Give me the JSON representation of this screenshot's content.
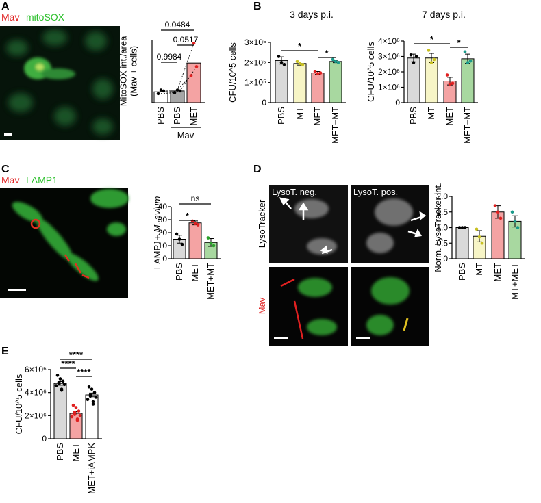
{
  "figure": {
    "panels": [
      "A",
      "B",
      "C",
      "D",
      "E"
    ],
    "image_labels": {
      "a_mav": "Mav",
      "a_mitosox": "mitoSOX",
      "c_mav": "Mav",
      "c_lamp1": "LAMP1",
      "d_neg": "LysoT. neg.",
      "d_pos": "LysoT. pos.",
      "d_lyso": "LysoTracker",
      "d_mav": "Mav"
    }
  },
  "chart_data": [
    {
      "type": "bar",
      "ylabel": [
        "MitoSOX int./area",
        "(Mav + cells)"
      ],
      "categories": [
        "PBS",
        "PBS",
        "MET"
      ],
      "values": [
        1.2,
        1.3,
        4.4
      ],
      "colors": [
        "#ffffff",
        "#a6a6a6",
        "#f4a3a3"
      ],
      "point_colors": [
        "#000000",
        "#000000",
        "#e02020"
      ],
      "points": [
        [
          1.0,
          1.4,
          1.3
        ],
        [
          1.1,
          1.4,
          1.3
        ],
        [
          3.0,
          6.6,
          4.0
        ]
      ],
      "paired": true,
      "ylim": [
        0,
        7
      ],
      "group": {
        "label": "Mav",
        "between": [
          1,
          2
        ]
      },
      "comparisons": [
        {
          "label": "0.9984",
          "between": [
            0,
            1
          ]
        },
        {
          "label": "0.0517",
          "between": [
            1,
            2
          ]
        },
        {
          "label": "0.0484",
          "between": [
            0,
            2
          ]
        }
      ]
    },
    {
      "type": "bar",
      "title": "3 days p.i.",
      "ylabel": [
        "CFU/10^5 cells"
      ],
      "categories": [
        "PBS",
        "MT",
        "MET",
        "MET+MT"
      ],
      "values": [
        210000,
        195000,
        148000,
        205000
      ],
      "errors": [
        18000,
        8000,
        7000,
        6000
      ],
      "colors": [
        "#d9d9d9",
        "#f7f5c6",
        "#f4a3a3",
        "#a8d8a0"
      ],
      "point_colors": [
        "#000000",
        "#c8c020",
        "#e02020",
        "#1a9a8a"
      ],
      "points": [
        [
          230000,
          200000,
          190000
        ],
        [
          205000,
          195000,
          190000
        ],
        [
          155000,
          145000,
          148000
        ],
        [
          215000,
          205000,
          200000
        ]
      ],
      "ylim": [
        0,
        300000
      ],
      "yticks": [
        0,
        {
          "value": 100000,
          "label": "1×10⁵"
        },
        {
          "value": 200000,
          "label": "2×10⁵"
        },
        {
          "value": 300000,
          "label": "3×10⁵"
        }
      ],
      "comparisons": [
        {
          "label": "*",
          "between": [
            0,
            2
          ]
        },
        {
          "label": "*",
          "between": [
            2,
            3
          ]
        }
      ]
    },
    {
      "type": "bar",
      "title": "7 days p.i.",
      "ylabel": [
        "CFU/10^5 cells"
      ],
      "categories": [
        "PBS",
        "MT",
        "MET",
        "MET+MT"
      ],
      "values": [
        2900000,
        2900000,
        1400000,
        2850000
      ],
      "errors": [
        250000,
        300000,
        250000,
        300000
      ],
      "colors": [
        "#d9d9d9",
        "#f7f5c6",
        "#f4a3a3",
        "#a8d8a0"
      ],
      "point_colors": [
        "#000000",
        "#c8c020",
        "#e02020",
        "#1a9a8a"
      ],
      "points": [
        [
          3100000,
          2600000,
          3000000
        ],
        [
          3400000,
          2600000,
          2800000
        ],
        [
          1800000,
          1200000,
          1250000
        ],
        [
          3300000,
          2600000,
          2700000
        ]
      ],
      "ylim": [
        0,
        4000000
      ],
      "yticks": [
        0,
        {
          "value": 1000000,
          "label": "1×10⁶"
        },
        {
          "value": 2000000,
          "label": "2×10⁶"
        },
        {
          "value": 3000000,
          "label": "3×10⁶"
        },
        {
          "value": 4000000,
          "label": "4×10⁶"
        }
      ],
      "comparisons": [
        {
          "label": "*",
          "between": [
            0,
            2
          ]
        },
        {
          "label": "*",
          "between": [
            2,
            3
          ]
        }
      ]
    },
    {
      "type": "bar",
      "ylabel": [
        "LAMP1+ "
      ],
      "ylabel_italic": "M. avium",
      "categories": [
        "PBS",
        "MET",
        "MET+MT"
      ],
      "values": [
        15,
        27.5,
        12.5
      ],
      "errors": [
        3,
        1.5,
        3
      ],
      "colors": [
        "#d9d9d9",
        "#f4a3a3",
        "#a8d8a0"
      ],
      "point_colors": [
        "#000000",
        "#e02020",
        "#2aa02a"
      ],
      "points": [
        [
          19,
          15,
          11
        ],
        [
          29,
          27,
          26
        ],
        [
          16,
          12,
          10
        ]
      ],
      "ylim": [
        0,
        40
      ],
      "yticks": [
        0,
        10,
        20,
        30,
        40
      ],
      "comparisons": [
        {
          "label": "*",
          "between": [
            0,
            1
          ]
        },
        {
          "label": "ns",
          "between": [
            0,
            2
          ]
        }
      ]
    },
    {
      "type": "bar",
      "ylabel": [
        "Norm. LysoTracker int."
      ],
      "categories": [
        "PBS",
        "MT",
        "MET",
        "MT+MET"
      ],
      "values": [
        1.0,
        0.72,
        1.5,
        1.2
      ],
      "errors": [
        0,
        0.18,
        0.2,
        0.18
      ],
      "colors": [
        "#d9d9d9",
        "#f7f5c6",
        "#f4a3a3",
        "#a8d8a0"
      ],
      "point_colors": [
        "#000000",
        "#c8c020",
        "#e02020",
        "#1a9a8a"
      ],
      "points": [
        [
          1,
          1,
          1
        ],
        [
          0.95,
          0.7,
          0.5
        ],
        [
          1.7,
          1.5,
          1.3
        ],
        [
          1.5,
          1.2,
          1.0
        ]
      ],
      "ylim": [
        0,
        2
      ],
      "yticks": [
        0,
        0.5,
        {
          "value": 1,
          "label": "1.0"
        },
        1.5,
        {
          "value": 2,
          "label": "2.0"
        }
      ]
    },
    {
      "type": "bar",
      "ylabel": [
        "CFU/10^5 cells"
      ],
      "categories": [
        "PBS",
        "MET",
        "MET+iAMPK"
      ],
      "values": [
        4800000,
        2200000,
        3800000
      ],
      "errors": [
        160000,
        150000,
        160000
      ],
      "colors": [
        "#d9d9d9",
        "#f4a3a3",
        "#ffffff"
      ],
      "point_colors": [
        "#000000",
        "#e02020",
        "#000000"
      ],
      "points": [
        [
          5500000,
          5200000,
          5000000,
          4900000,
          4800000,
          4700000,
          4600000,
          4300000,
          4200000
        ],
        [
          2900000,
          2700000,
          2400000,
          2300000,
          2100000,
          2000000,
          1900000,
          1700000,
          1600000
        ],
        [
          4500000,
          4300000,
          4000000,
          3800000,
          3700000,
          3600000,
          3400000,
          3200000,
          3000000
        ]
      ],
      "ylim": [
        0,
        6000000
      ],
      "yticks": [
        0,
        {
          "value": 2000000,
          "label": "2×10⁶"
        },
        {
          "value": 4000000,
          "label": "4×10⁶"
        },
        {
          "value": 6000000,
          "label": "6×10⁶"
        }
      ],
      "comparisons": [
        {
          "label": "****",
          "between": [
            0,
            2
          ]
        },
        {
          "label": "****",
          "between": [
            0,
            1
          ]
        },
        {
          "label": "****",
          "between": [
            1,
            2
          ]
        }
      ]
    }
  ]
}
